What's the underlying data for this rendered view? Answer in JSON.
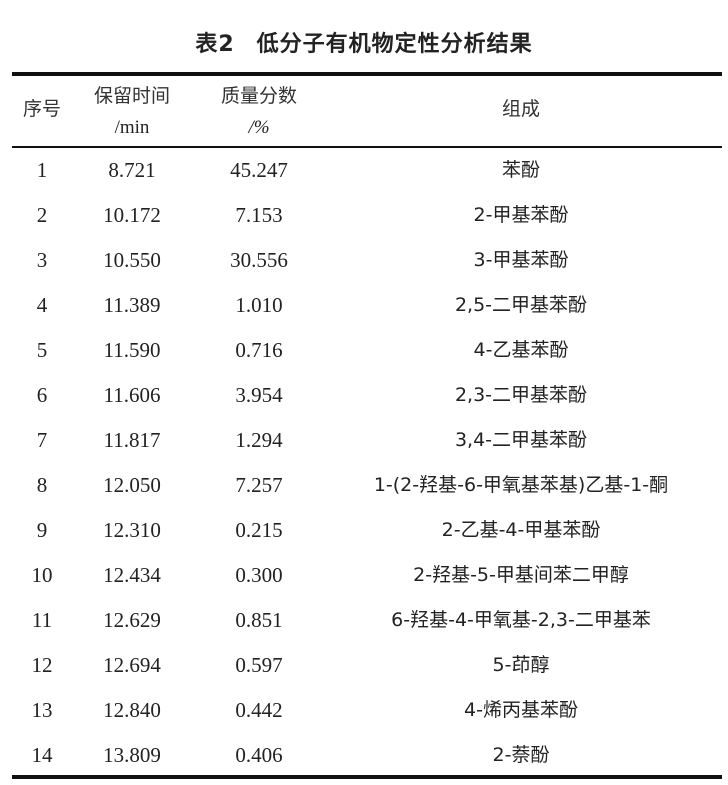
{
  "table": {
    "label": "表2",
    "title": "低分子有机物定性分析结果",
    "headers": [
      {
        "line1": "序号",
        "line2": ""
      },
      {
        "line1": "保留时间",
        "line2": "/min"
      },
      {
        "line1": "质量分数",
        "line2": "/%"
      },
      {
        "line1": "组成",
        "line2": ""
      }
    ],
    "rows": [
      {
        "no": "1",
        "time": "8.721",
        "fraction": "45.247",
        "component": "苯酚"
      },
      {
        "no": "2",
        "time": "10.172",
        "fraction": "7.153",
        "component": "2-甲基苯酚"
      },
      {
        "no": "3",
        "time": "10.550",
        "fraction": "30.556",
        "component": "3-甲基苯酚"
      },
      {
        "no": "4",
        "time": "11.389",
        "fraction": "1.010",
        "component": "2,5-二甲基苯酚"
      },
      {
        "no": "5",
        "time": "11.590",
        "fraction": "0.716",
        "component": "4-乙基苯酚"
      },
      {
        "no": "6",
        "time": "11.606",
        "fraction": "3.954",
        "component": "2,3-二甲基苯酚"
      },
      {
        "no": "7",
        "time": "11.817",
        "fraction": "1.294",
        "component": "3,4-二甲基苯酚"
      },
      {
        "no": "8",
        "time": "12.050",
        "fraction": "7.257",
        "component": "1-(2-羟基-6-甲氧基苯基)乙基-1-酮"
      },
      {
        "no": "9",
        "time": "12.310",
        "fraction": "0.215",
        "component": "2-乙基-4-甲基苯酚"
      },
      {
        "no": "10",
        "time": "12.434",
        "fraction": "0.300",
        "component": "2-羟基-5-甲基间苯二甲醇"
      },
      {
        "no": "11",
        "time": "12.629",
        "fraction": "0.851",
        "component": "6-羟基-4-甲氧基-2,3-二甲基苯"
      },
      {
        "no": "12",
        "time": "12.694",
        "fraction": "0.597",
        "component": "5-茚醇"
      },
      {
        "no": "13",
        "time": "12.840",
        "fraction": "0.442",
        "component": "4-烯丙基苯酚"
      },
      {
        "no": "14",
        "time": "13.809",
        "fraction": "0.406",
        "component": "2-萘酚"
      }
    ]
  }
}
